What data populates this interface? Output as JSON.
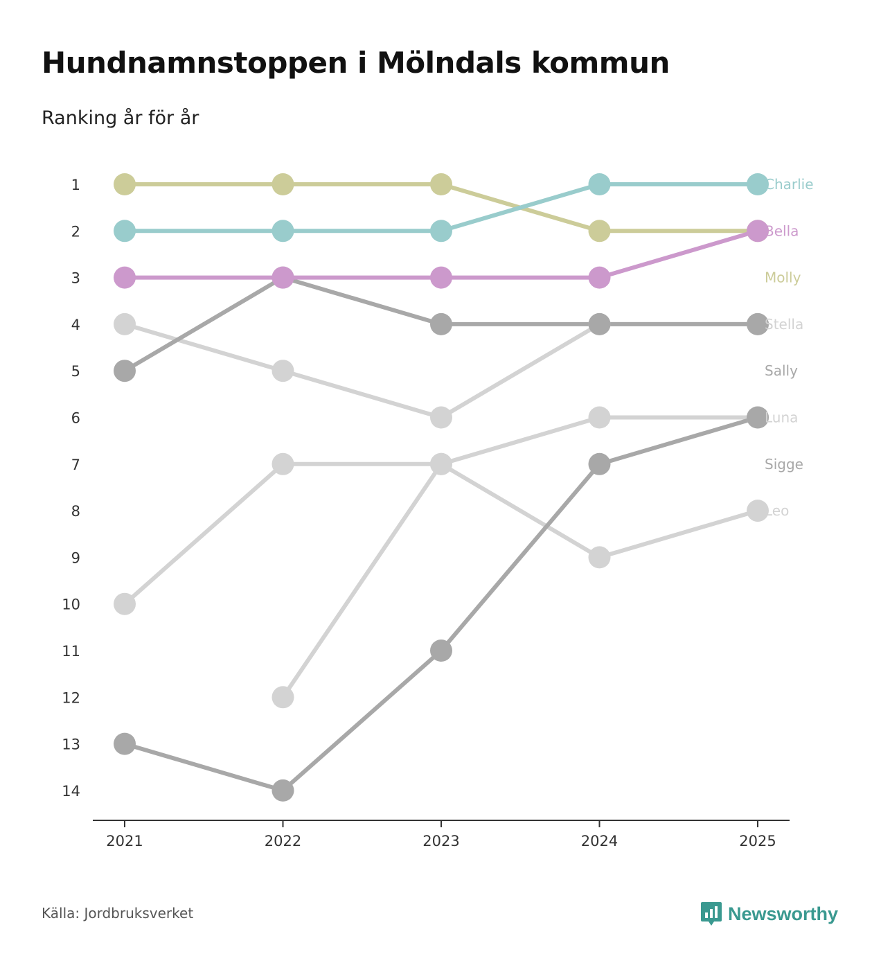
{
  "title": "Hundnamnstoppen i Mölndals kommun",
  "subtitle": "Ranking år för år",
  "source": "Källa: Jordbruksverket",
  "brand": "Newsworthy",
  "chart_data": {
    "type": "line",
    "chart_kind": "bump",
    "x": [
      "2021",
      "2022",
      "2023",
      "2024",
      "2025"
    ],
    "y_ticks": [
      1,
      2,
      3,
      4,
      5,
      6,
      7,
      8,
      9,
      10,
      11,
      12,
      13,
      14
    ],
    "ylim": [
      1,
      14
    ],
    "y_inverted": true,
    "series": [
      {
        "name": "Stella",
        "color": "#d3d3d3",
        "values": [
          4,
          5,
          6,
          4,
          4
        ]
      },
      {
        "name": "Luna",
        "color": "#d3d3d3",
        "values": [
          10,
          7,
          7,
          6,
          6
        ]
      },
      {
        "name": "Leo",
        "color": "#d3d3d3",
        "values": [
          null,
          12,
          7,
          9,
          8
        ]
      },
      {
        "name": "Sally",
        "color": "#a8a8a8",
        "values": [
          5,
          3,
          4,
          4,
          4
        ]
      },
      {
        "name": "Sigge",
        "color": "#a8a8a8",
        "values": [
          13,
          14,
          11,
          7,
          6
        ]
      },
      {
        "name": "Molly",
        "color": "#cccc99",
        "values": [
          1,
          1,
          1,
          2,
          2
        ]
      },
      {
        "name": "Charlie",
        "color": "#99cccc",
        "values": [
          2,
          2,
          2,
          1,
          1
        ]
      },
      {
        "name": "Bella",
        "color": "#cc99cc",
        "values": [
          3,
          3,
          3,
          3,
          2
        ]
      }
    ],
    "labels": [
      {
        "text": "Charlie",
        "color": "#99cccc",
        "rank": 1
      },
      {
        "text": "Bella",
        "color": "#cc99cc",
        "rank": 2
      },
      {
        "text": "Molly",
        "color": "#cccc99",
        "rank": 3
      },
      {
        "text": "Stella",
        "color": "#d3d3d3",
        "rank": 4
      },
      {
        "text": "Sally",
        "color": "#a8a8a8",
        "rank": 5
      },
      {
        "text": "Luna",
        "color": "#d3d3d3",
        "rank": 6
      },
      {
        "text": "Sigge",
        "color": "#a8a8a8",
        "rank": 7
      },
      {
        "text": "Leo",
        "color": "#d3d3d3",
        "rank": 8
      }
    ]
  }
}
